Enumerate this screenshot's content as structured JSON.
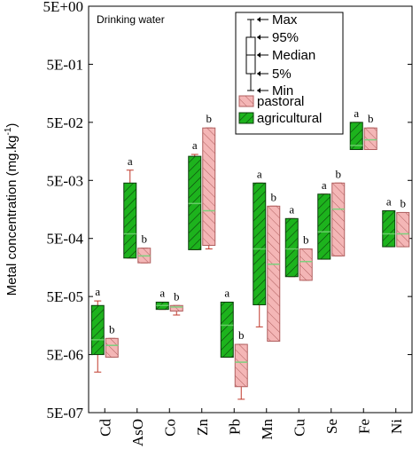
{
  "chart_data": {
    "type": "box",
    "annotation": "Drinking water",
    "ylabel": "Metal concentration (mg.kg",
    "ylabel_sup": "-1",
    "ylabel_close": ")",
    "yscale": "log",
    "ylim": [
      5e-07,
      5
    ],
    "yticks": [
      {
        "value": 5,
        "label": "5E+00"
      },
      {
        "value": 0.5,
        "label": "5E-01"
      },
      {
        "value": 0.05,
        "label": "5E-02"
      },
      {
        "value": 0.005,
        "label": "5E-03"
      },
      {
        "value": 0.0005,
        "label": "5E-04"
      },
      {
        "value": 5e-05,
        "label": "5E-05"
      },
      {
        "value": 5e-06,
        "label": "5E-06"
      },
      {
        "value": 5e-07,
        "label": "5E-07"
      }
    ],
    "categories": [
      "Cd",
      "AsO",
      "Co",
      "Zn",
      "Pb",
      "Mn",
      "Cu",
      "Se",
      "Fe",
      "Ni"
    ],
    "series": [
      {
        "name": "agricultural",
        "color": "#1db31d",
        "boxes": [
          {
            "min": 2.5e-06,
            "p5": 5e-06,
            "median": 9e-06,
            "p95": 3.5e-05,
            "max": 4.2e-05
          },
          {
            "min": 0.00023,
            "p5": 0.00023,
            "median": 0.0006,
            "p95": 0.0045,
            "max": 0.0075
          },
          {
            "min": 3e-05,
            "p5": 3e-05,
            "median": 3.5e-05,
            "p95": 4e-05,
            "max": 4e-05
          },
          {
            "min": 0.00032,
            "p5": 0.00032,
            "median": 0.002,
            "p95": 0.013,
            "max": 0.014
          },
          {
            "min": 4.5e-06,
            "p5": 4.5e-06,
            "median": 1.6e-05,
            "p95": 4e-05,
            "max": 4e-05
          },
          {
            "min": 1.5e-05,
            "p5": 3.6e-05,
            "median": 0.00033,
            "p95": 0.0045,
            "max": 0.0045
          },
          {
            "min": 0.00011,
            "p5": 0.00011,
            "median": 0.00033,
            "p95": 0.0011,
            "max": 0.0011
          },
          {
            "min": 0.00022,
            "p5": 0.00022,
            "median": 0.00065,
            "p95": 0.0029,
            "max": 0.0029
          },
          {
            "min": 0.017,
            "p5": 0.017,
            "median": 0.02,
            "p95": 0.05,
            "max": 0.05
          },
          {
            "min": 0.00036,
            "p5": 0.00036,
            "median": 0.0006,
            "p95": 0.0015,
            "max": 0.0015
          }
        ]
      },
      {
        "name": "pastoral",
        "color": "#f4b6b6",
        "boxes": [
          {
            "min": 4.5e-06,
            "p5": 4.5e-06,
            "median": 7.2e-06,
            "p95": 9.5e-06,
            "max": 9.5e-06
          },
          {
            "min": 0.00019,
            "p5": 0.00019,
            "median": 0.00025,
            "p95": 0.00034,
            "max": 0.00034
          },
          {
            "min": 2.4e-05,
            "p5": 2.8e-05,
            "median": 3.3e-05,
            "p95": 3.5e-05,
            "max": 3.5e-05
          },
          {
            "min": 0.00033,
            "p5": 0.00038,
            "median": 0.0015,
            "p95": 0.04,
            "max": 0.04
          },
          {
            "min": 8.5e-07,
            "p5": 1.4e-06,
            "median": 3.7e-06,
            "p95": 7.5e-06,
            "max": 7.5e-06
          },
          {
            "min": 8.5e-06,
            "p5": 8.5e-06,
            "median": 0.00018,
            "p95": 0.0018,
            "max": 0.0018
          },
          {
            "min": 9.5e-05,
            "p5": 9.5e-05,
            "median": 0.0002,
            "p95": 0.00033,
            "max": 0.00033
          },
          {
            "min": 0.00025,
            "p5": 0.00025,
            "median": 0.0016,
            "p95": 0.0045,
            "max": 0.0045
          },
          {
            "min": 0.017,
            "p5": 0.017,
            "median": 0.025,
            "p95": 0.04,
            "max": 0.04
          },
          {
            "min": 0.00036,
            "p5": 0.00036,
            "median": 0.0006,
            "p95": 0.0014,
            "max": 0.0014
          }
        ]
      }
    ],
    "letters": [
      {
        "agricultural": "a",
        "pastoral": "b"
      },
      {
        "agricultural": "a",
        "pastoral": "b"
      },
      {
        "agricultural": "a",
        "pastoral": "b"
      },
      {
        "agricultural": "a",
        "pastoral": "b"
      },
      {
        "agricultural": "a",
        "pastoral": "b"
      },
      {
        "agricultural": "a",
        "pastoral": "b"
      },
      {
        "agricultural": "a",
        "pastoral": "b"
      },
      {
        "agricultural": "a",
        "pastoral": "b"
      },
      {
        "agricultural": "a",
        "pastoral": "b"
      },
      {
        "agricultural": "a",
        "pastoral": "b"
      }
    ],
    "legend": {
      "placement": "top-right",
      "key_items": [
        "Max",
        "95%",
        "Median",
        "5%",
        "Min"
      ],
      "series_items": [
        "pastoral",
        "agricultural"
      ]
    },
    "whisker_color": "#c0392b",
    "median_color_agricultural": "#66cc66",
    "median_color_pastoral": "#7ed07e"
  }
}
